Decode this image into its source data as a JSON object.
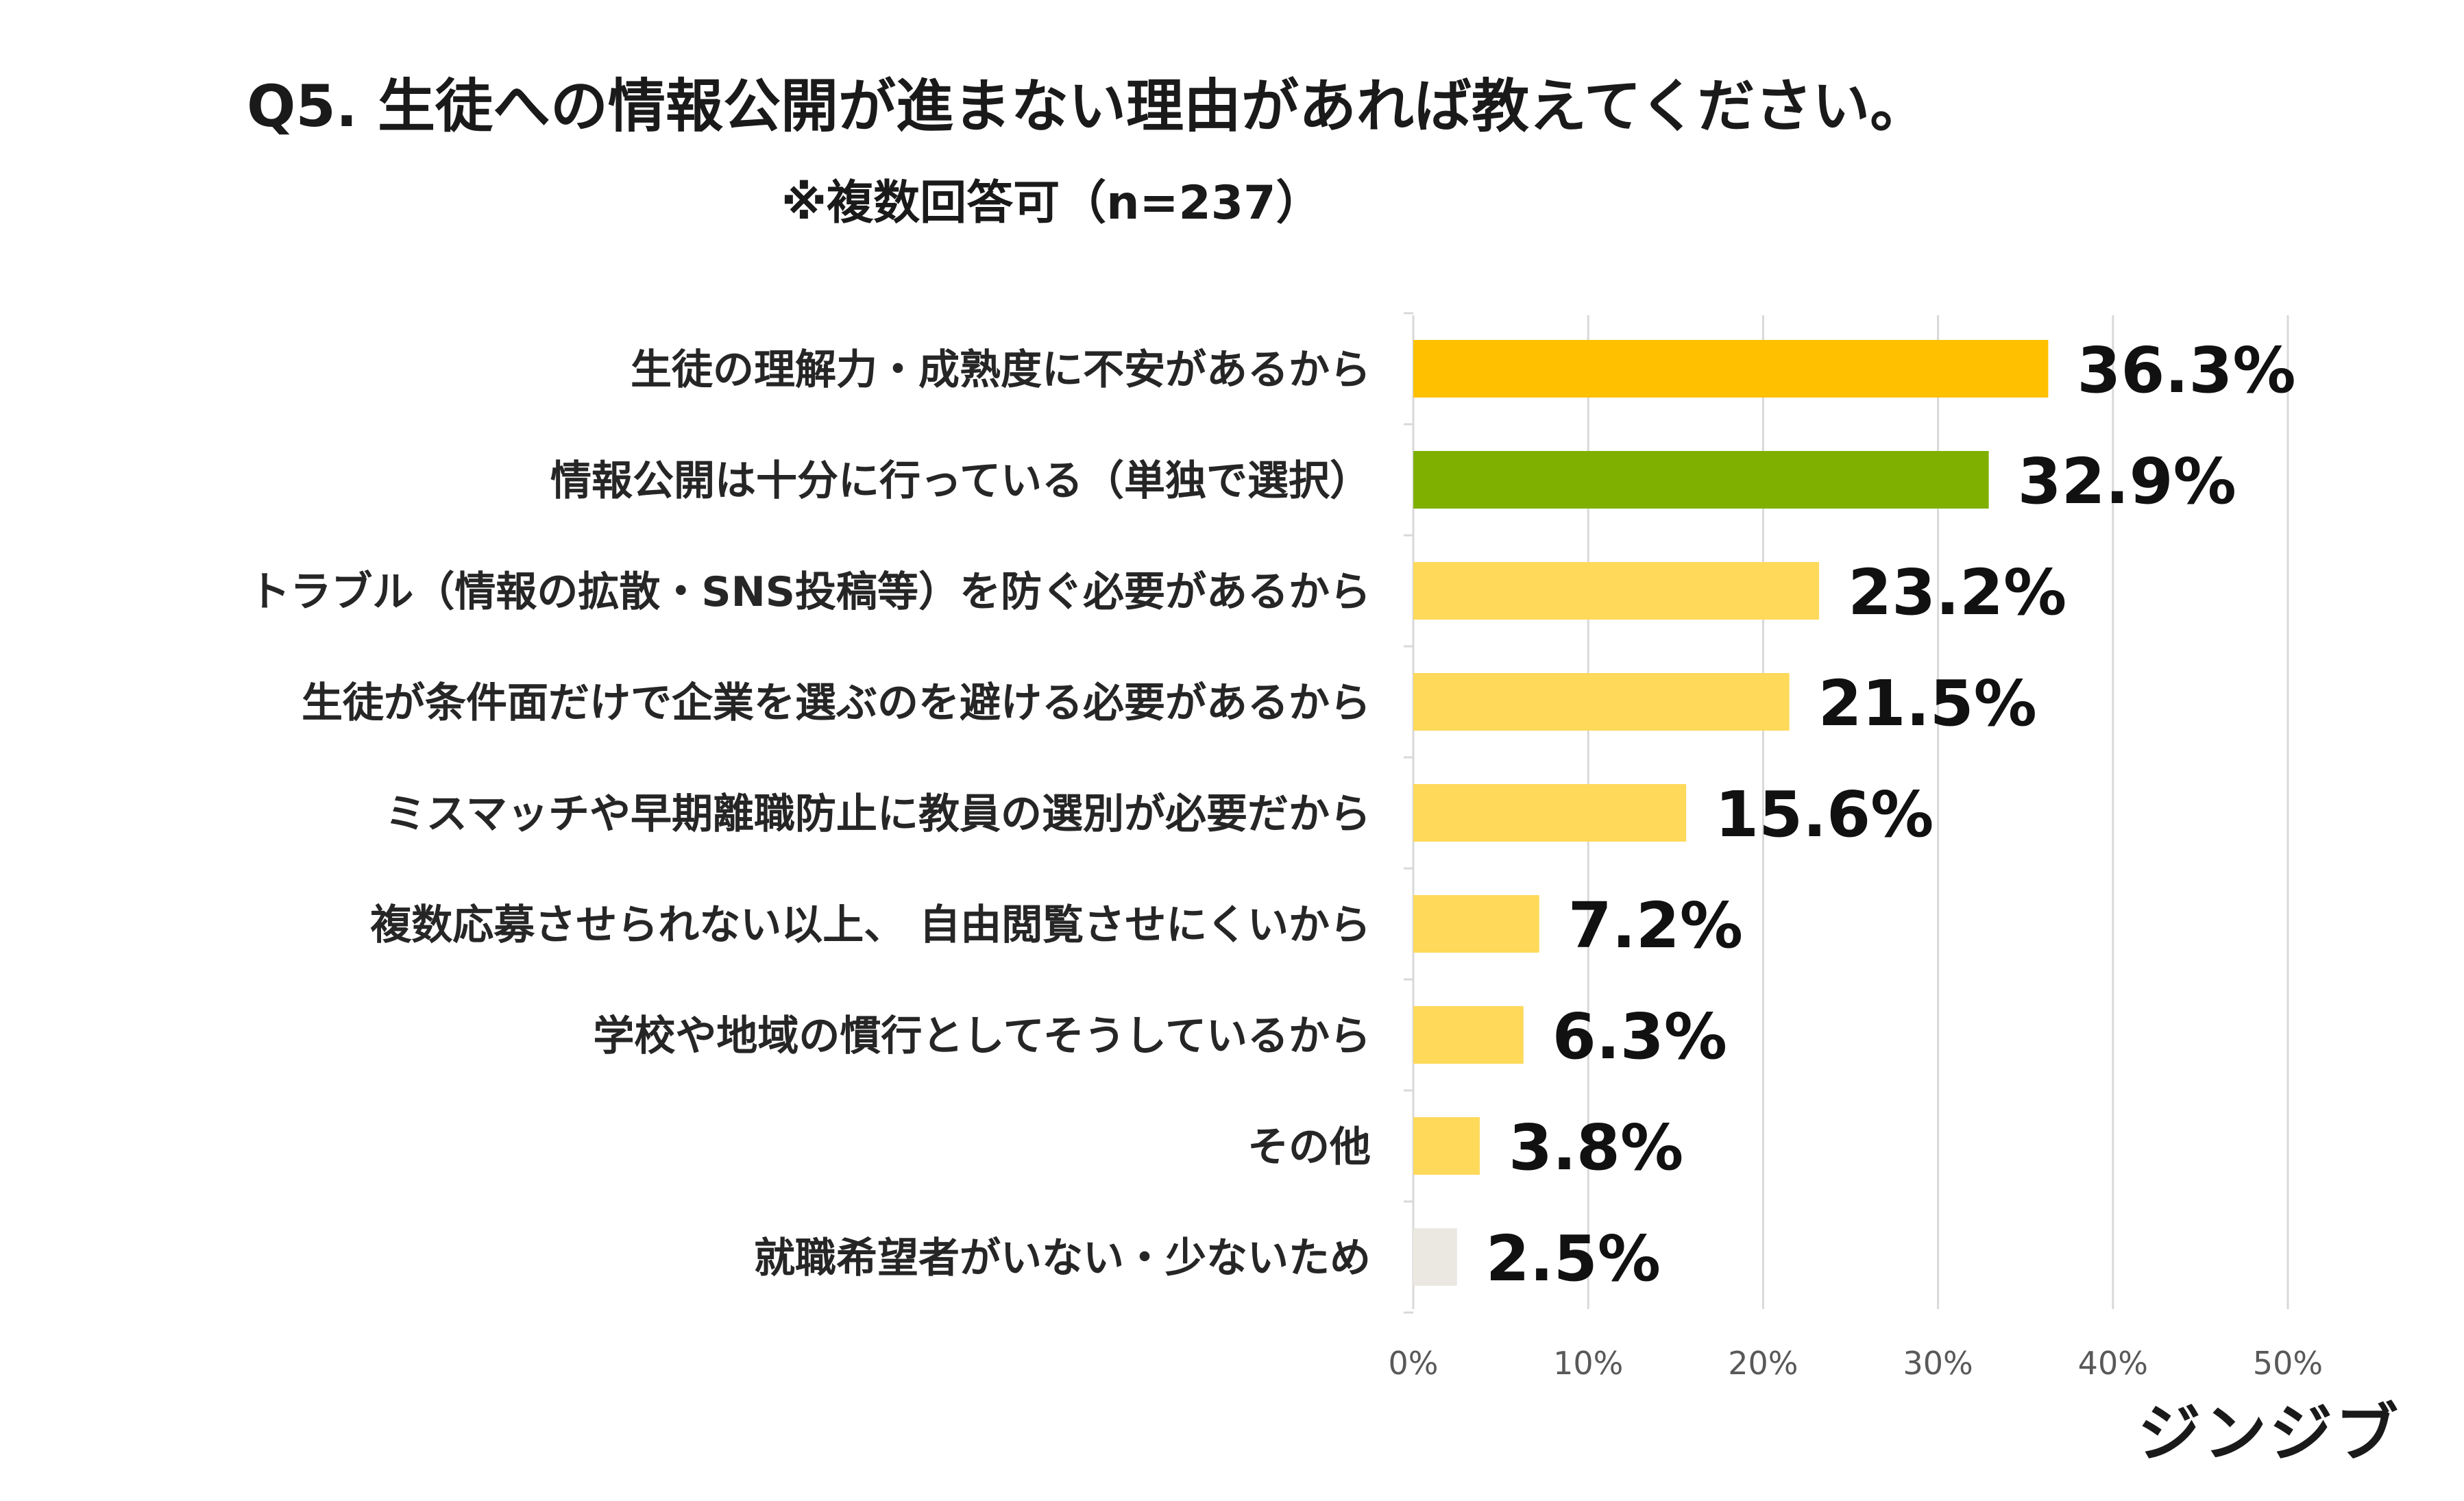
{
  "header": {
    "title": "Q5. 生徒への情報公開が進まない理由があれば教えてください。",
    "subtitle": "※複数回答可（n=237）"
  },
  "brand": {
    "logo_text": "ジンジブ"
  },
  "chart_data": {
    "type": "bar",
    "orientation": "horizontal",
    "title": "Q5. 生徒への情報公開が進まない理由があれば教えてください。",
    "subtitle": "※複数回答可（n=237）",
    "categories": [
      "生徒の理解力・成熟度に不安があるから",
      "情報公開は十分に行っている（単独で選択）",
      "トラブル（情報の拡散・SNS投稿等）を防ぐ必要があるから",
      "生徒が条件面だけで企業を選ぶのを避ける必要があるから",
      "ミスマッチや早期離職防止に教員の選別が必要だから",
      "複数応募させられない以上、 自由閲覧させにくいから",
      "学校や地域の慣行としてそうしているから",
      "その他",
      "就職希望者がいない・少ないため"
    ],
    "values": [
      36.3,
      32.9,
      23.2,
      21.5,
      15.6,
      7.2,
      6.3,
      3.8,
      2.5
    ],
    "value_labels": [
      "36.3%",
      "32.9%",
      "23.2%",
      "21.5%",
      "15.6%",
      "7.2%",
      "6.3%",
      "3.8%",
      "2.5%"
    ],
    "bar_colors": [
      "#FFC000",
      "#7FB000",
      "#FFD95A",
      "#FFD95A",
      "#FFD95A",
      "#FFD95A",
      "#FFD95A",
      "#FFD95A",
      "#EBE8E2"
    ],
    "xlim": [
      0,
      50
    ],
    "xticks": [
      0,
      10,
      20,
      30,
      40,
      50
    ],
    "xtick_labels": [
      "0%",
      "10%",
      "20%",
      "30%",
      "40%",
      "50%"
    ],
    "xlabel": "",
    "ylabel": "",
    "grid": true,
    "legend": false
  }
}
